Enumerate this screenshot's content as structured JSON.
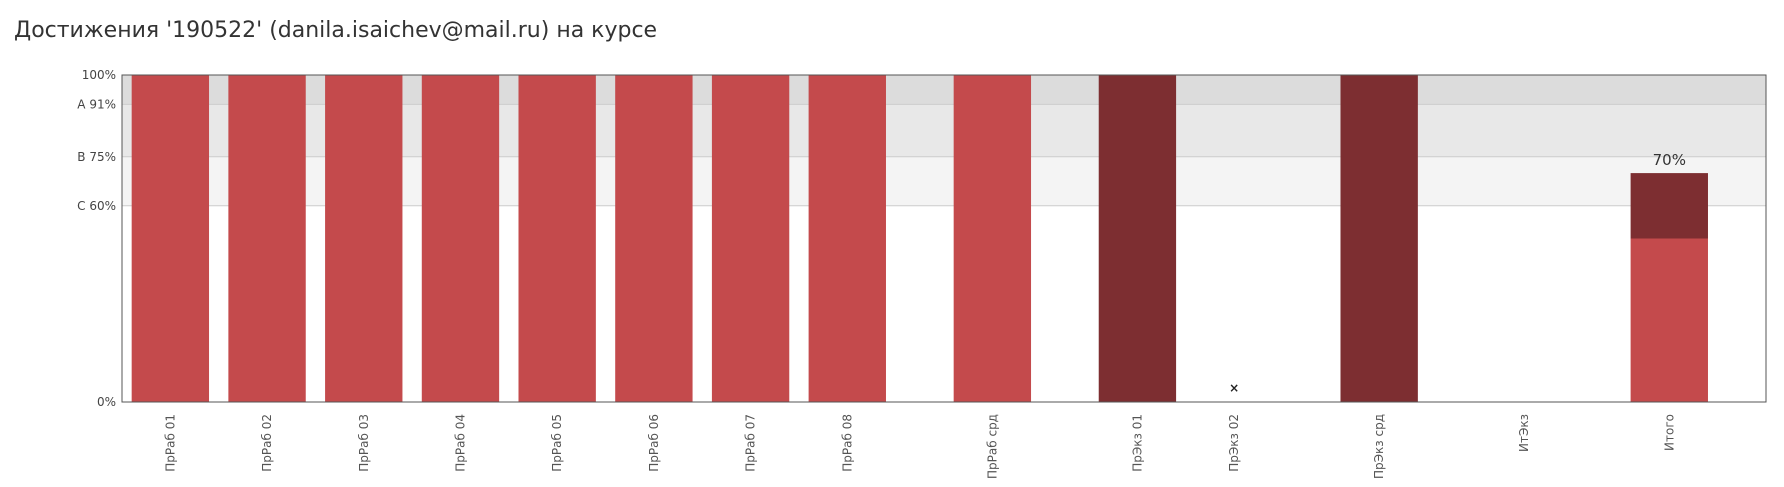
{
  "title": "Достижения '190522' (danila.isaichev@mail.ru) на курсе",
  "chart_data": {
    "type": "bar",
    "ylim": [
      0,
      100
    ],
    "yticks": [
      {
        "value": 0,
        "label": "0%"
      },
      {
        "value": 60,
        "label": "C 60%"
      },
      {
        "value": 75,
        "label": "B 75%"
      },
      {
        "value": 91,
        "label": "A 91%"
      },
      {
        "value": 100,
        "label": "100%"
      }
    ],
    "grade_bands": [
      {
        "from": 60,
        "to": 75,
        "color": "#f4f4f4"
      },
      {
        "from": 75,
        "to": 91,
        "color": "#e8e8e8"
      },
      {
        "from": 91,
        "to": 100,
        "color": "#dcdcdc"
      }
    ],
    "categories": [
      "ПрРаб 01",
      "ПрРаб 02",
      "ПрРаб 03",
      "ПрРаб 04",
      "ПрРаб 05",
      "ПрРаб 06",
      "ПрРаб 07",
      "ПрРаб 08",
      "ПрРаб срд",
      "ПрЭкз 01",
      "ПрЭкз 02",
      "ПрЭкз срд",
      "ИтЭкз",
      "Итого"
    ],
    "groups": [
      8,
      1,
      2,
      1,
      1,
      1
    ],
    "bars": [
      {
        "value": 100,
        "color": "#c44a4c"
      },
      {
        "value": 100,
        "color": "#c44a4c"
      },
      {
        "value": 100,
        "color": "#c44a4c"
      },
      {
        "value": 100,
        "color": "#c44a4c"
      },
      {
        "value": 100,
        "color": "#c44a4c"
      },
      {
        "value": 100,
        "color": "#c44a4c"
      },
      {
        "value": 100,
        "color": "#c44a4c"
      },
      {
        "value": 100,
        "color": "#c44a4c"
      },
      {
        "value": 100,
        "color": "#c44a4c"
      },
      {
        "value": 100,
        "color": "#7d2e31"
      },
      {
        "value": null,
        "marker": "×"
      },
      {
        "value": 100,
        "color": "#7d2e31"
      },
      {
        "value": null
      },
      {
        "stack": [
          {
            "value": 50,
            "color": "#c44a4c"
          },
          {
            "value": 20,
            "color": "#7d2e31"
          }
        ],
        "total_label": "70%"
      }
    ],
    "grid_color": "#cccccc",
    "axis_color": "#555555"
  }
}
